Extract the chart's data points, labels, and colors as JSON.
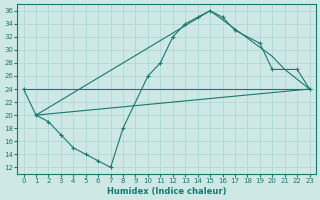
{
  "xlabel": "Humidex (Indice chaleur)",
  "xlim": [
    -0.5,
    23.5
  ],
  "ylim": [
    11,
    37
  ],
  "yticks": [
    12,
    14,
    16,
    18,
    20,
    22,
    24,
    26,
    28,
    30,
    32,
    34,
    36
  ],
  "xticks": [
    0,
    1,
    2,
    3,
    4,
    5,
    6,
    7,
    8,
    9,
    10,
    11,
    12,
    13,
    14,
    15,
    16,
    17,
    18,
    19,
    20,
    21,
    22,
    23
  ],
  "bg_color": "#cde8e5",
  "line_color": "#1a7870",
  "grid_color": "#add4cf",
  "line1_x": [
    0,
    1,
    2,
    3,
    4,
    5,
    6,
    7,
    8,
    10,
    11,
    12,
    13,
    14,
    15,
    16,
    17,
    19,
    20,
    22,
    23
  ],
  "line1_y": [
    24,
    20,
    19,
    17,
    15,
    14,
    13,
    12,
    18,
    26,
    28,
    32,
    34,
    35,
    36,
    35,
    33,
    31,
    27,
    27,
    24
  ],
  "line2_x": [
    0,
    23
  ],
  "line2_y": [
    24,
    24
  ],
  "line3_x": [
    1,
    23
  ],
  "line3_y": [
    20,
    24
  ],
  "line4_x": [
    1,
    15,
    20,
    21,
    23
  ],
  "line4_y": [
    20,
    36,
    29,
    27,
    24
  ]
}
